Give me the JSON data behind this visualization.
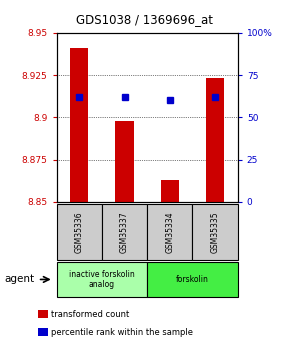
{
  "title": "GDS1038 / 1369696_at",
  "samples": [
    "GSM35336",
    "GSM35337",
    "GSM35334",
    "GSM35335"
  ],
  "bar_values": [
    8.941,
    8.898,
    8.863,
    8.923
  ],
  "bar_base": 8.85,
  "dot_values": [
    8.912,
    8.912,
    8.91,
    8.912
  ],
  "ylim": [
    8.85,
    8.95
  ],
  "yticks": [
    8.85,
    8.875,
    8.9,
    8.925,
    8.95
  ],
  "ytick_labels": [
    "8.85",
    "8.875",
    "8.9",
    "8.925",
    "8.95"
  ],
  "right_yticks": [
    0,
    25,
    50,
    75,
    100
  ],
  "right_ytick_labels": [
    "0",
    "25",
    "50",
    "75",
    "100%"
  ],
  "bar_color": "#cc0000",
  "dot_color": "#0000cc",
  "left_tick_color": "#cc0000",
  "right_tick_color": "#0000cc",
  "groups": [
    {
      "label": "inactive forskolin\nanalog",
      "start": 0,
      "end": 2,
      "color": "#aaffaa"
    },
    {
      "label": "forskolin",
      "start": 2,
      "end": 4,
      "color": "#44ee44"
    }
  ],
  "agent_label": "agent",
  "legend_items": [
    {
      "color": "#cc0000",
      "label": "transformed count"
    },
    {
      "color": "#0000cc",
      "label": "percentile rank within the sample"
    }
  ],
  "background_color": "#ffffff",
  "sample_box_color": "#cccccc"
}
